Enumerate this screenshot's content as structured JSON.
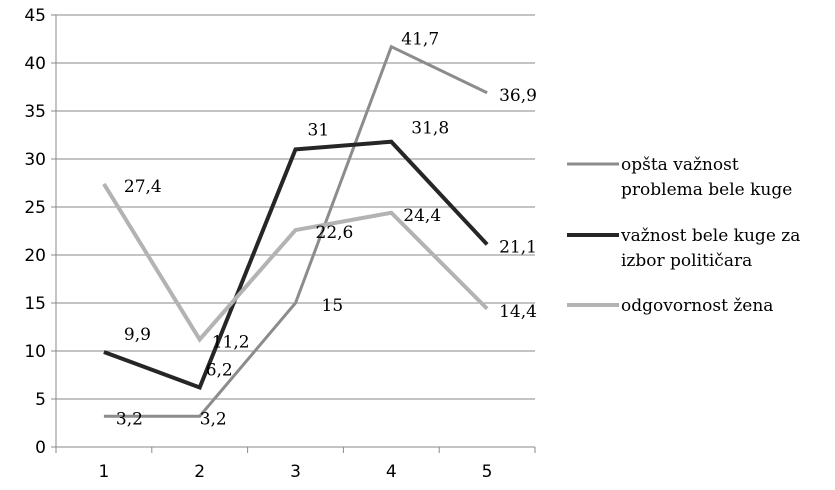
{
  "chart_data": {
    "type": "line",
    "categories": [
      "1",
      "2",
      "3",
      "4",
      "5"
    ],
    "ylim": [
      0,
      45
    ],
    "yticks": [
      0,
      5,
      10,
      15,
      20,
      25,
      30,
      35,
      40,
      45
    ],
    "grid": "horizontal",
    "legend_position": "right",
    "series": [
      {
        "name": "opšta važnost problema bele kuge",
        "legend_lines": [
          "opšta važnost",
          "problema bele kuge"
        ],
        "values": [
          3.2,
          3.2,
          15,
          41.7,
          36.9
        ],
        "labels": [
          "3,2",
          "3,2",
          "15",
          "41,7",
          "36,9"
        ],
        "color": "#8c8c8c"
      },
      {
        "name": "važnost bele kuge za izbor političara",
        "legend_lines": [
          "važnost bele kuge za",
          "izbor političara"
        ],
        "values": [
          9.9,
          6.2,
          31,
          31.8,
          21.1
        ],
        "labels": [
          "9,9",
          "6,2",
          "31",
          "31,8",
          "21,1"
        ],
        "color": "#262626"
      },
      {
        "name": "odgovornost žena",
        "legend_lines": [
          "odgovornost žena"
        ],
        "values": [
          27.4,
          11.2,
          22.6,
          24.4,
          14.4
        ],
        "labels": [
          "27,4",
          "11,2",
          "22,6",
          "24,4",
          "14,4"
        ],
        "color": "#b3b3b3"
      }
    ]
  }
}
